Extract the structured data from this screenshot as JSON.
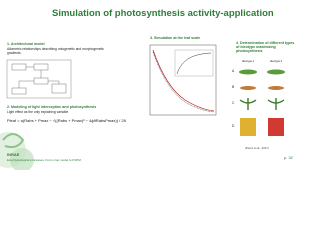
{
  "header": {
    "title": "Simulation of photosynthesis activity-application"
  },
  "sections": [
    {
      "heading": "1. Architectural model",
      "text": "Allometric relationships describing ontogenetic and morphogenetic gradients."
    },
    {
      "heading": "2. Modeling of light interception and photosynthesis",
      "text": "Light effect as the only explaining variable",
      "equation": "Pleaf = a(Rabs + Pmax − √((Rabs + Pmax)² − 4ϕθRabsPmax)) / 2θ"
    },
    {
      "heading": "3. Simulation at the leaf scale"
    },
    {
      "heading": "4. Determination of different types of ideotype maximizing photosynthesis",
      "columns": [
        "Ideotype 1",
        "Ideotype 2"
      ],
      "rows": [
        "A",
        "B",
        "C",
        "D"
      ]
    }
  ],
  "citation": "(Perez et al., 2017)",
  "footer": {
    "logo": "INRAE",
    "text": "Ecophysiological processes. From crop model to FSPM.",
    "page": "p. 32"
  }
}
